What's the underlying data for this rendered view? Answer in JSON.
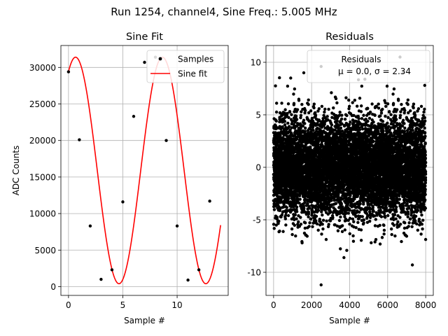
{
  "suptitle": "Run 1254, channel4, Sine Freq.: 5.005 MHz",
  "colors": {
    "samples": "#000000",
    "fit": "#ff0000",
    "grid": "#b0b0b0",
    "residuals": "#000000"
  },
  "chart_data": [
    {
      "type": "scatter+line",
      "title": "Sine Fit",
      "xlabel": "Sample #",
      "ylabel": "ADC Counts",
      "xlim": [
        -0.7,
        14.7
      ],
      "ylim": [
        -1200,
        33000
      ],
      "xticks": [
        0,
        5,
        10
      ],
      "yticks": [
        0,
        5000,
        10000,
        15000,
        20000,
        25000,
        30000
      ],
      "grid": true,
      "legend": {
        "location": "top-right",
        "entries": [
          "Samples",
          "Sine fit"
        ]
      },
      "series": [
        {
          "name": "Samples",
          "kind": "scatter",
          "x": [
            0,
            1,
            2,
            3,
            4,
            5,
            6,
            7,
            8,
            9,
            10,
            11,
            12,
            13
          ],
          "y": [
            29400,
            20100,
            8300,
            1000,
            2300,
            11600,
            23300,
            30700,
            31400,
            20000,
            8300,
            900,
            2300,
            11700
          ]
        },
        {
          "name": "Sine fit",
          "kind": "line",
          "model": {
            "offset": 15900,
            "amplitude": 15500,
            "period_samples": 7.995,
            "phase_rad": 1.06
          },
          "x_range": [
            0,
            14
          ]
        }
      ]
    },
    {
      "type": "scatter",
      "title": "Residuals",
      "xlabel": "Sample #",
      "ylabel": "",
      "xlim": [
        -400,
        8400
      ],
      "ylim": [
        -12.2,
        11.6
      ],
      "xticks": [
        0,
        2000,
        4000,
        6000,
        8000
      ],
      "yticks": [
        -10,
        -5,
        0,
        5,
        10
      ],
      "grid": true,
      "legend": {
        "location": "top-right",
        "entries": [
          "Residuals",
          "μ = 0.0, σ = 2.34"
        ]
      },
      "summary": {
        "n_points": 8000,
        "x_range": [
          0,
          7999
        ],
        "mean": 0.0,
        "sigma": 2.34
      },
      "notable_points": [
        {
          "x": 2500,
          "y": -11.2
        },
        {
          "x": 2500,
          "y": 9.6
        },
        {
          "x": 6650,
          "y": 10.5
        },
        {
          "x": 900,
          "y": 8.5
        },
        {
          "x": 3700,
          "y": -8.6
        },
        {
          "x": 7300,
          "y": -9.3
        },
        {
          "x": 1500,
          "y": -7.2
        },
        {
          "x": 7950,
          "y": 7.8
        }
      ]
    }
  ]
}
